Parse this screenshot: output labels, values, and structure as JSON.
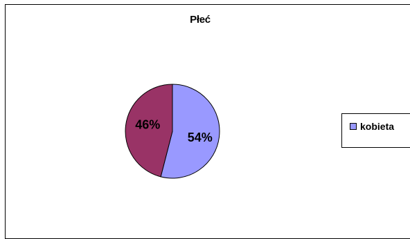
{
  "chart_data": {
    "type": "pie",
    "title": "Płeć",
    "slices": [
      {
        "name": "kobieta",
        "value": 54,
        "label": "54%",
        "color": "#9999ff"
      },
      {
        "name": "",
        "value": 46,
        "label": "46%",
        "color": "#993366"
      }
    ],
    "legend_position": "right",
    "legend": [
      {
        "label": "kobieta",
        "color": "#9999ff"
      }
    ]
  }
}
